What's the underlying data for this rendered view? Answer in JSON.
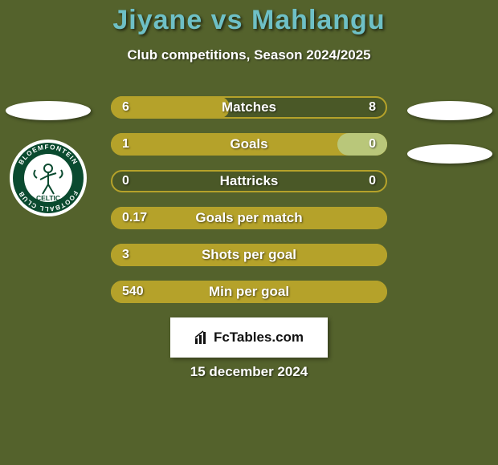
{
  "background_color": "#54622c",
  "title": {
    "text": "Jiyane vs Mahlangu",
    "color": "#6ec0c6",
    "fontsize": 34
  },
  "subtitle": "Club competitions, Season 2024/2025",
  "left_crest": {
    "ring_color": "#0a4a2f",
    "inner_bg": "#ffffff",
    "top_text": "BLOEMFONTEIN",
    "bottom_text": "FOOTBALL CLUB",
    "word": "CELTIC"
  },
  "track_color": "#4a5827",
  "fill_color": "#b5a22a",
  "rows": [
    {
      "metric": "Matches",
      "left": "6",
      "right": "8",
      "fill_pct": 43
    },
    {
      "metric": "Goals",
      "left": "1",
      "right": "0",
      "fill_pct": 100,
      "right_cap": true,
      "cap_pct": 18
    },
    {
      "metric": "Hattricks",
      "left": "0",
      "right": "0",
      "fill_pct": 0
    },
    {
      "metric": "Goals per match",
      "left": "0.17",
      "right": "",
      "fill_pct": 100
    },
    {
      "metric": "Shots per goal",
      "left": "3",
      "right": "",
      "fill_pct": 100
    },
    {
      "metric": "Min per goal",
      "left": "540",
      "right": "",
      "fill_pct": 100
    }
  ],
  "row_border_color": "#b5a22a",
  "branding_text": "FcTables.com",
  "date_text": "15 december 2024"
}
